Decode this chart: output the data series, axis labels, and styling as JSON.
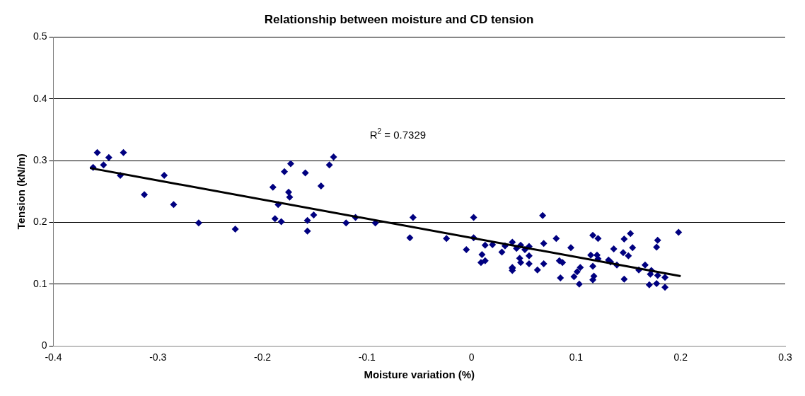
{
  "chart_data": {
    "type": "scatter",
    "title": "Relationship between moisture and CD tension",
    "xlabel": "Moisture variation (%)",
    "ylabel": "Tension (kN/m)",
    "xlim": [
      -0.4,
      0.3
    ],
    "xticks": [
      -0.4,
      -0.3,
      -0.2,
      -0.1,
      0,
      0.1,
      0.2,
      0.3
    ],
    "ylim": [
      0,
      0.5
    ],
    "yticks": [
      0,
      0.1,
      0.2,
      0.3,
      0.4,
      0.5
    ],
    "grid": "y",
    "legend": false,
    "marker": "diamond",
    "annotations": [
      "R$^{2}$ = 0.7329"
    ],
    "series": [
      {
        "type": "scatter",
        "color": "#000080",
        "x": [
          -0.362,
          -0.358,
          -0.352,
          -0.347,
          -0.336,
          -0.333,
          -0.313,
          -0.294,
          -0.285,
          -0.261,
          -0.226,
          -0.19,
          -0.185,
          -0.188,
          -0.182,
          -0.179,
          -0.173,
          -0.175,
          -0.174,
          -0.159,
          -0.157,
          -0.157,
          -0.151,
          -0.144,
          -0.136,
          -0.132,
          -0.12,
          -0.111,
          -0.092,
          -0.059,
          -0.056,
          -0.024,
          -0.005,
          0.002,
          0.002,
          0.01,
          0.009,
          0.013,
          0.013,
          0.02,
          0.029,
          0.032,
          0.039,
          0.039,
          0.039,
          0.043,
          0.047,
          0.051,
          0.055,
          0.055,
          0.046,
          0.047,
          0.055,
          0.039,
          0.063,
          0.069,
          0.069,
          0.068,
          0.081,
          0.084,
          0.087,
          0.085,
          0.095,
          0.104,
          0.101,
          0.098,
          0.103,
          0.116,
          0.121,
          0.114,
          0.12,
          0.121,
          0.116,
          0.117,
          0.116,
          0.131,
          0.133,
          0.136,
          0.139,
          0.146,
          0.152,
          0.145,
          0.15,
          0.154,
          0.146,
          0.16,
          0.166,
          0.172,
          0.171,
          0.17,
          0.178,
          0.177,
          0.185,
          0.185,
          0.178,
          0.177,
          0.198
        ],
        "values": [
          0.289,
          0.313,
          0.293,
          0.305,
          0.276,
          0.313,
          0.245,
          0.276,
          0.229,
          0.199,
          0.189,
          0.257,
          0.229,
          0.206,
          0.201,
          0.282,
          0.295,
          0.249,
          0.241,
          0.28,
          0.203,
          0.186,
          0.212,
          0.259,
          0.293,
          0.306,
          0.199,
          0.208,
          0.199,
          0.175,
          0.208,
          0.174,
          0.156,
          0.208,
          0.175,
          0.148,
          0.135,
          0.138,
          0.163,
          0.164,
          0.152,
          0.162,
          0.168,
          0.126,
          0.122,
          0.158,
          0.163,
          0.156,
          0.161,
          0.146,
          0.142,
          0.135,
          0.133,
          0.127,
          0.123,
          0.133,
          0.166,
          0.211,
          0.174,
          0.138,
          0.135,
          0.11,
          0.159,
          0.127,
          0.12,
          0.112,
          0.1,
          0.179,
          0.174,
          0.147,
          0.147,
          0.141,
          0.129,
          0.113,
          0.107,
          0.139,
          0.136,
          0.157,
          0.131,
          0.173,
          0.182,
          0.151,
          0.146,
          0.159,
          0.108,
          0.123,
          0.131,
          0.122,
          0.116,
          0.099,
          0.114,
          0.101,
          0.111,
          0.095,
          0.171,
          0.16,
          0.184
        ]
      },
      {
        "type": "line",
        "color": "#000000",
        "marker": "none",
        "x": [
          -0.365,
          0.2
        ],
        "values": [
          0.288,
          0.113
        ]
      }
    ]
  }
}
